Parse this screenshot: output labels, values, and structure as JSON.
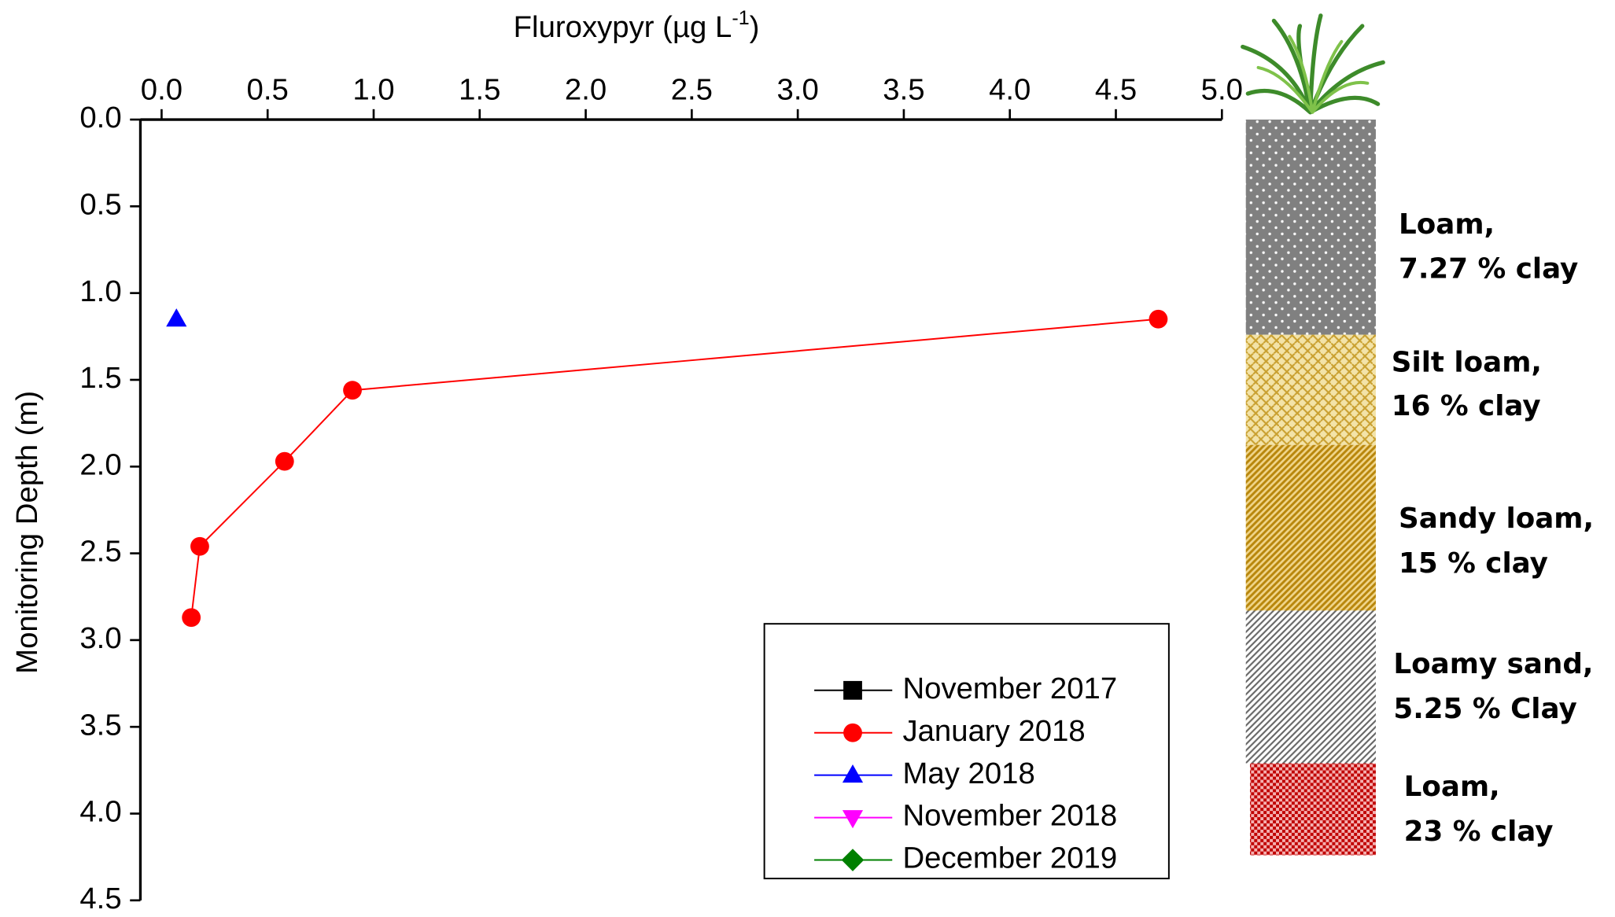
{
  "chart_data": {
    "type": "scatter",
    "x_label": [
      "Fluroxypyr (µg L",
      "-1",
      ")"
    ],
    "y_label": "Monitoring Depth (m)",
    "xlim": [
      -0.1,
      5.0
    ],
    "xticks": [
      {
        "value": 0,
        "label": "0.0"
      },
      0.5,
      {
        "value": 1,
        "label": "1.0"
      },
      1.5,
      {
        "value": 2,
        "label": "2.0"
      },
      2.5,
      {
        "value": 3,
        "label": "3.0"
      },
      3.5,
      {
        "value": 4,
        "label": "4.0"
      },
      4.5,
      {
        "value": 5,
        "label": "5.0"
      }
    ],
    "ylim": [
      0,
      4.5
    ],
    "yticks": [
      {
        "value": 0,
        "label": "0.0"
      },
      0.5,
      {
        "value": 1,
        "label": "1.0"
      },
      1.5,
      {
        "value": 2,
        "label": "2.0"
      },
      2.5,
      {
        "value": 3,
        "label": "3.0"
      },
      3.5,
      {
        "value": 4,
        "label": "4.0"
      },
      4.5
    ],
    "y_inverted": true,
    "series": [
      {
        "name": "November 2017",
        "color": "#000000",
        "marker": "square",
        "x": [],
        "values": []
      },
      {
        "name": "January 2018",
        "color": "#ff0000",
        "marker": "circle",
        "x": [
          4.7,
          0.9,
          0.58,
          0.18,
          0.14
        ],
        "values": [
          1.15,
          1.56,
          1.97,
          2.46,
          2.87
        ]
      },
      {
        "name": "May 2018",
        "color": "#0000ff",
        "marker": "triangle-up",
        "x": [
          0.07
        ],
        "values": [
          1.15
        ]
      },
      {
        "name": "November 2018",
        "color": "#ff00ff",
        "marker": "triangle-down",
        "x": [],
        "values": []
      },
      {
        "name": "December 2019",
        "color": "#008000",
        "marker": "diamond",
        "x": [],
        "values": []
      }
    ],
    "soil_layers": [
      {
        "label": [
          "Loam,",
          "7.27 % clay"
        ],
        "top": 0,
        "bottom": 1.24
      },
      {
        "label": [
          "Silt loam,",
          "16 % clay"
        ],
        "top": 1.24,
        "bottom": 1.875
      },
      {
        "label": [
          "Sandy loam,",
          "15 % clay"
        ],
        "top": 1.875,
        "bottom": 2.83
      },
      {
        "label": [
          "Loamy sand,",
          "5.25 % Clay"
        ],
        "top": 2.83,
        "bottom": 3.71
      },
      {
        "label": [
          "Loam,",
          "23 % clay"
        ],
        "top": 3.71,
        "bottom": 4.24
      }
    ]
  }
}
